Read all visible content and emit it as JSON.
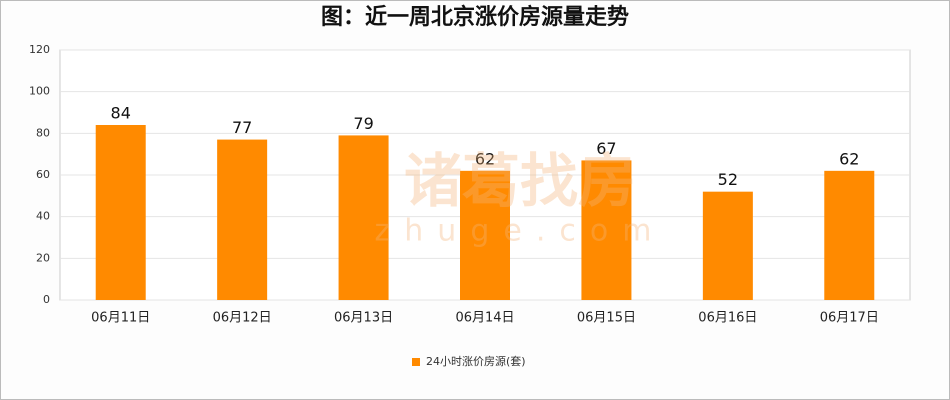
{
  "chart_data": {
    "type": "bar",
    "title": "图：近一周北京涨价房源量走势",
    "categories": [
      "06月11日",
      "06月12日",
      "06月13日",
      "06月14日",
      "06月15日",
      "06月16日",
      "06月17日"
    ],
    "series": [
      {
        "name": "24小时涨价房源(套)",
        "color": "#ff8a00",
        "values": [
          84,
          77,
          79,
          62,
          67,
          52,
          62
        ]
      }
    ],
    "ylim": [
      0,
      120
    ],
    "yticks": [
      0,
      20,
      40,
      60,
      80,
      100,
      120
    ],
    "grid": true,
    "watermark": [
      "诸葛找房",
      "zhuge.com"
    ]
  }
}
